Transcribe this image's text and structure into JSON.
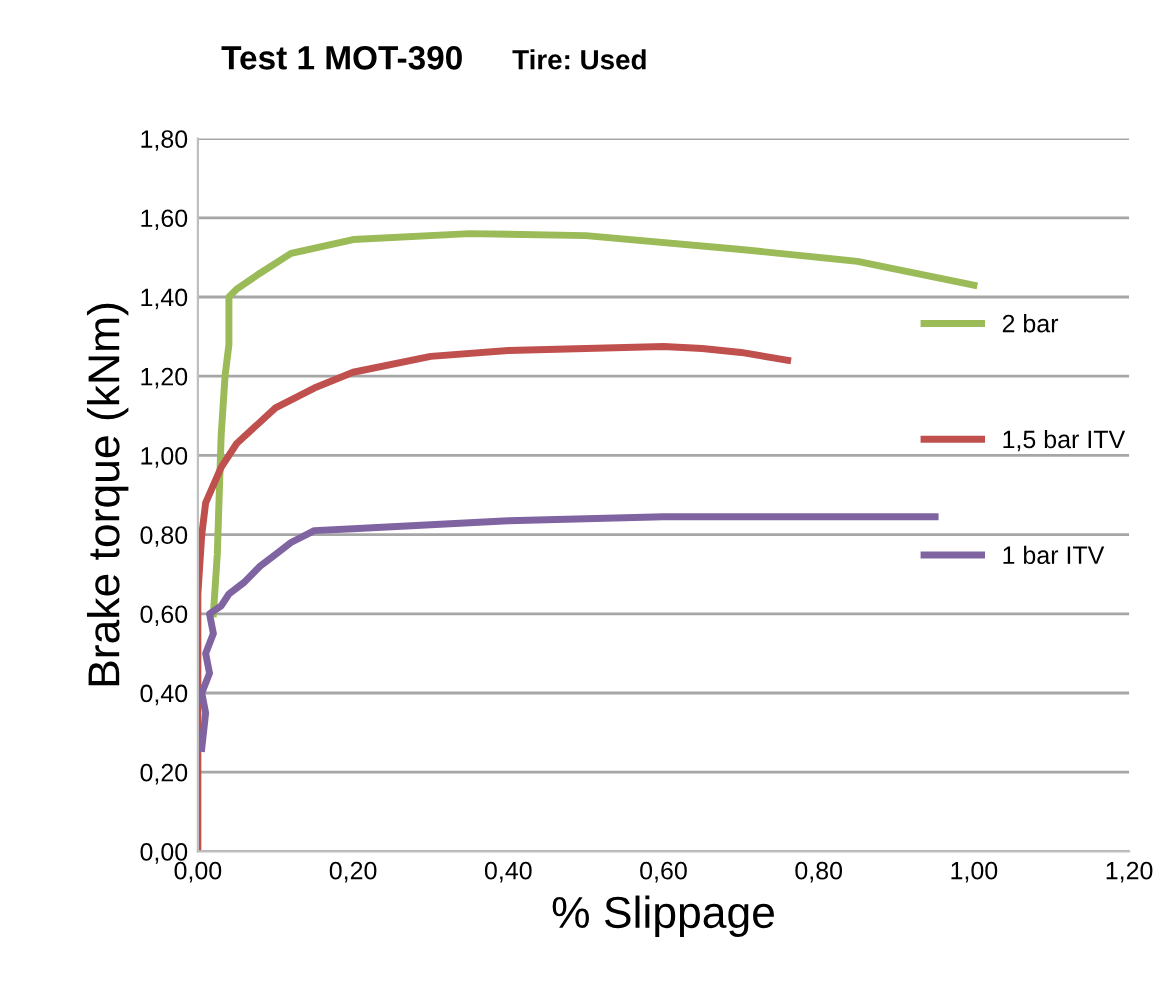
{
  "chart_data": {
    "type": "line",
    "title": "Test 1 MOT-390",
    "subtitle": "Tire: Used",
    "xlabel": "% Slippage",
    "ylabel": "Brake torque (kNm)",
    "xlim": [
      0,
      1.2
    ],
    "xticks": [
      {
        "value": 0,
        "label": "0,00"
      },
      {
        "value": 0.2,
        "label": "0,20"
      },
      {
        "value": 0.4,
        "label": "0,40"
      },
      {
        "value": 0.6,
        "label": "0,60"
      },
      {
        "value": 0.8,
        "label": "0,80"
      },
      {
        "value": 1.0,
        "label": "1,00"
      },
      {
        "value": 1.2,
        "label": "1,20"
      }
    ],
    "ylim": [
      0,
      1.8
    ],
    "yticks": [
      {
        "value": 0,
        "label": "0,00"
      },
      {
        "value": 0.2,
        "label": "0,20"
      },
      {
        "value": 0.4,
        "label": "0,40"
      },
      {
        "value": 0.6,
        "label": "0,60"
      },
      {
        "value": 0.8,
        "label": "0,80"
      },
      {
        "value": 1.0,
        "label": "1,00"
      },
      {
        "value": 1.2,
        "label": "1,20"
      },
      {
        "value": 1.4,
        "label": "1,40"
      },
      {
        "value": 1.6,
        "label": "1,60"
      },
      {
        "value": 1.8,
        "label": "1,80"
      }
    ],
    "grid": "y",
    "legend": "right",
    "marker": "none",
    "line_style": "solid",
    "series": [
      {
        "name": "2 bar",
        "color": "#9bbb59",
        "x": [
          0.02,
          0.025,
          0.03,
          0.035,
          0.04,
          0.04,
          0.05,
          0.08,
          0.12,
          0.2,
          0.35,
          0.5,
          0.7,
          0.85,
          1.0
        ],
        "values": [
          0.6,
          0.75,
          1.05,
          1.2,
          1.28,
          1.4,
          1.42,
          1.46,
          1.51,
          1.545,
          1.56,
          1.555,
          1.52,
          1.49,
          1.43
        ]
      },
      {
        "name": "1,5 bar ITV",
        "color": "#c0504d",
        "x": [
          0,
          0,
          0.005,
          0.01,
          0.03,
          0.05,
          0.1,
          0.15,
          0.2,
          0.3,
          0.4,
          0.5,
          0.6,
          0.65,
          0.7,
          0.76
        ],
        "values": [
          0,
          0.65,
          0.8,
          0.88,
          0.97,
          1.03,
          1.12,
          1.17,
          1.21,
          1.25,
          1.265,
          1.27,
          1.275,
          1.27,
          1.26,
          1.24
        ]
      },
      {
        "name": "1 bar ITV",
        "color": "#8064a2",
        "x": [
          0.005,
          0.01,
          0.005,
          0.015,
          0.01,
          0.02,
          0.015,
          0.03,
          0.04,
          0.06,
          0.08,
          0.1,
          0.12,
          0.15,
          0.2,
          0.3,
          0.4,
          0.6,
          0.8,
          0.95
        ],
        "values": [
          0.26,
          0.35,
          0.4,
          0.45,
          0.5,
          0.55,
          0.6,
          0.62,
          0.65,
          0.68,
          0.72,
          0.75,
          0.78,
          0.81,
          0.815,
          0.825,
          0.835,
          0.845,
          0.845,
          0.845
        ]
      }
    ]
  }
}
